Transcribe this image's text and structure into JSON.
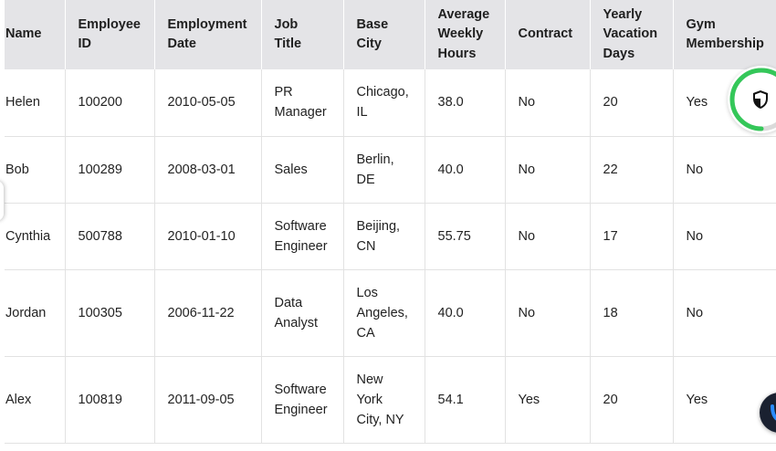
{
  "table": {
    "columns": [
      [
        "Name"
      ],
      [
        "Employee",
        "ID"
      ],
      [
        "Employment",
        "Date"
      ],
      [
        "Job",
        "Title"
      ],
      [
        "Base",
        "City"
      ],
      [
        "Average",
        "Weekly",
        "Hours"
      ],
      [
        "Contract"
      ],
      [
        "Yearly",
        "Vacation",
        "Days"
      ],
      [
        "Gym",
        "Membership"
      ]
    ],
    "rows": [
      {
        "name": "Helen",
        "id": "100200",
        "date": "2010-05-05",
        "title": [
          "PR",
          "Manager"
        ],
        "city": [
          "Chicago,",
          "IL"
        ],
        "hours": "38.0",
        "contract": "No",
        "vacation": "20",
        "gym": "Yes"
      },
      {
        "name": "Bob",
        "id": "100289",
        "date": "2008-03-01",
        "title": [
          "Sales"
        ],
        "city": [
          "Berlin,",
          "DE"
        ],
        "hours": "40.0",
        "contract": "No",
        "vacation": "22",
        "gym": "No"
      },
      {
        "name": "Cynthia",
        "id": "500788",
        "date": "2010-01-10",
        "title": [
          "Software",
          "Engineer"
        ],
        "city": [
          "Beijing,",
          "CN"
        ],
        "hours": "55.75",
        "contract": "No",
        "vacation": "17",
        "gym": "No"
      },
      {
        "name": "Jordan",
        "id": "100305",
        "date": "2006-11-22",
        "title": [
          "Data",
          "Analyst"
        ],
        "city": [
          "Los",
          "Angeles,",
          "CA"
        ],
        "hours": "40.0",
        "contract": "No",
        "vacation": "18",
        "gym": "No"
      },
      {
        "name": "Alex",
        "id": "100819",
        "date": "2011-09-05",
        "title": [
          "Software",
          "Engineer"
        ],
        "city": [
          "New",
          "York",
          "City, NY"
        ],
        "hours": "54.1",
        "contract": "Yes",
        "vacation": "20",
        "gym": "Yes"
      }
    ]
  },
  "widgets": {
    "security": {
      "icon": "shield-icon",
      "ring_progress": 0.72,
      "ring_color": "#34c759",
      "ring_track": "#dadada"
    },
    "assistant": {
      "icon": "assistant-icon",
      "accent": "#2a8cff"
    }
  }
}
